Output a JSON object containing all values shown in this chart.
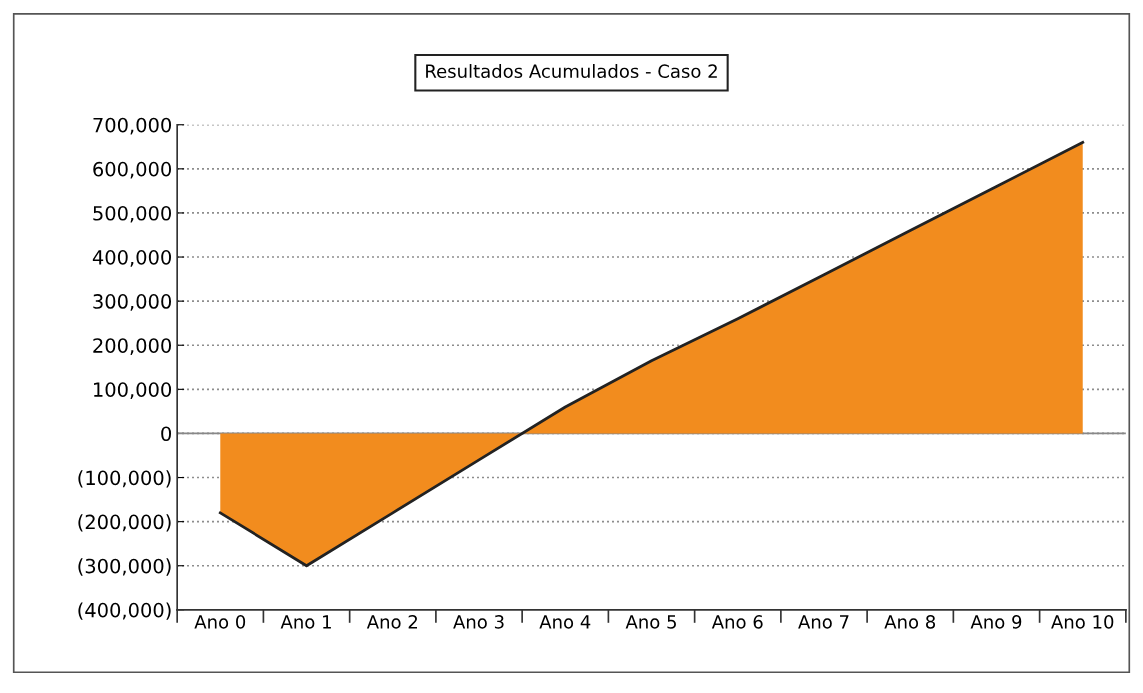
{
  "chart_data": {
    "type": "area",
    "title": "Resultados Acumulados - Caso 2",
    "categories": [
      "Ano 0",
      "Ano 1",
      "Ano 2",
      "Ano 3",
      "Ano 4",
      "Ano 5",
      "Ano 6",
      "Ano 7",
      "Ano 8",
      "Ano 9",
      "Ano 10"
    ],
    "series": [
      {
        "color": "#f28c1e",
        "values": [
          -180000,
          -300000,
          -180000,
          -60000,
          60000,
          165000,
          260000,
          360000,
          460000,
          560000,
          660000
        ]
      }
    ],
    "ylim": [
      -400000,
      700000
    ],
    "yticks": [
      {
        "value": -400000,
        "label": "(400,000)"
      },
      {
        "value": -300000,
        "label": "(300,000)"
      },
      {
        "value": -200000,
        "label": "(200,000)"
      },
      {
        "value": -100000,
        "label": "(100,000)"
      },
      0,
      {
        "value": 100000,
        "label": "100,000"
      },
      {
        "value": 200000,
        "label": "200,000"
      },
      {
        "value": 300000,
        "label": "300,000"
      },
      {
        "value": 400000,
        "label": "400,000"
      },
      {
        "value": 500000,
        "label": "500,000"
      },
      {
        "value": 600000,
        "label": "600,000"
      },
      {
        "value": 700000,
        "label": "700,000"
      }
    ],
    "ref_lines": [
      {
        "axis": "y",
        "value": 0,
        "color": "#888888",
        "line_style": "solid"
      }
    ],
    "grid": "y",
    "legend": false
  }
}
